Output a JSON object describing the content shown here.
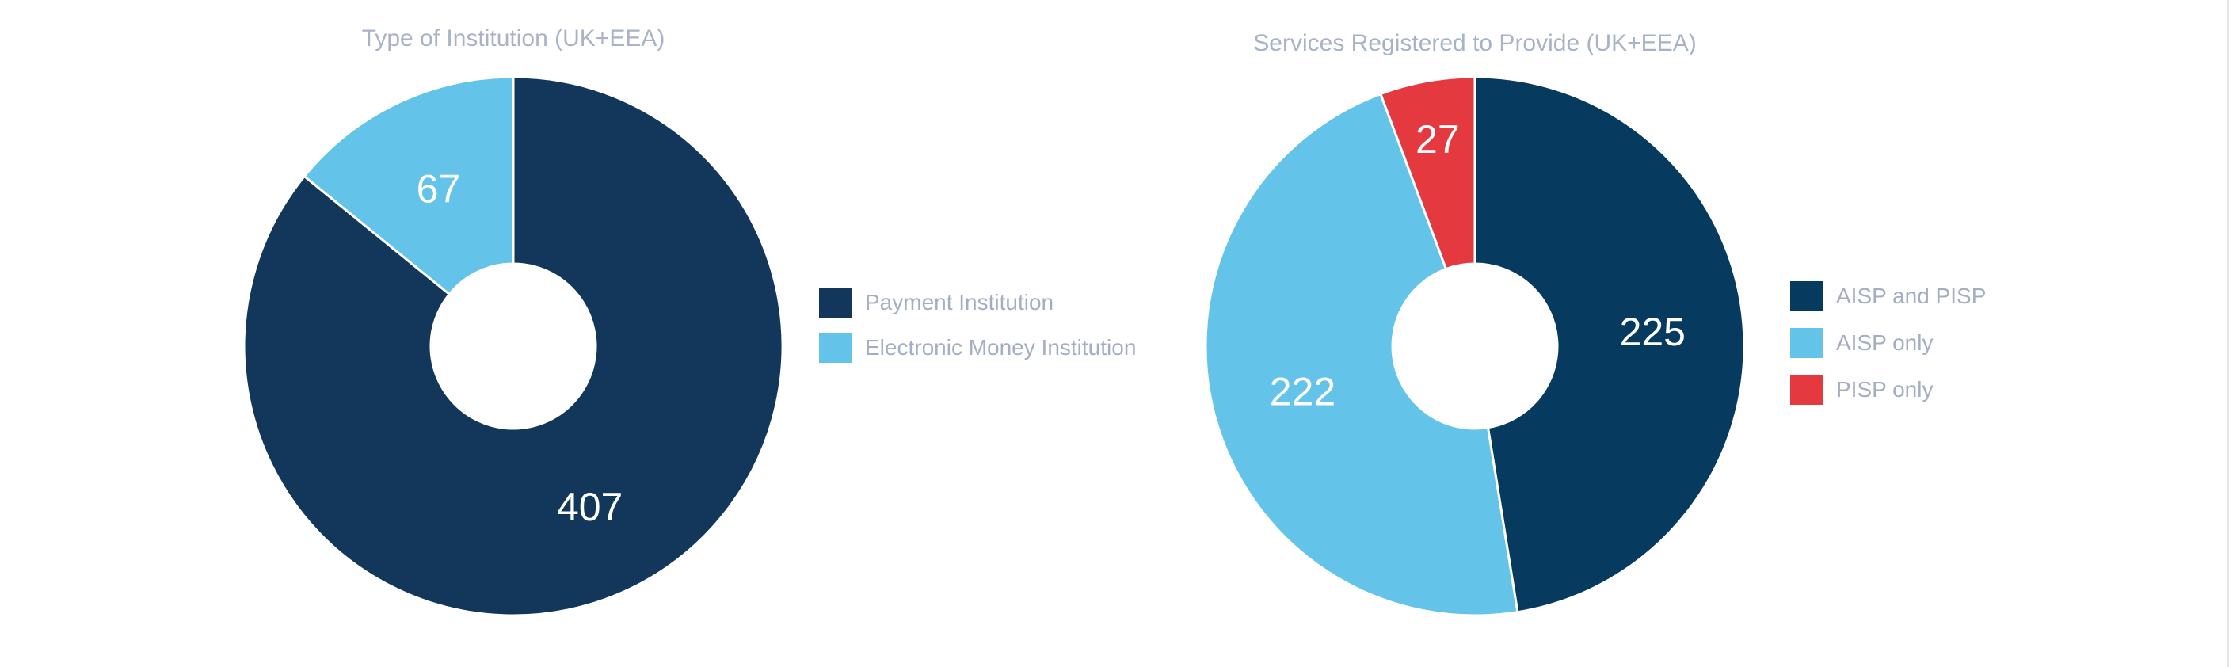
{
  "chart_data": [
    {
      "type": "pie",
      "title": "Type of Institution (UK+EEA)",
      "categories": [
        "Payment Institution",
        "Electronic Money Institution"
      ],
      "values": [
        407,
        67
      ],
      "colors": [
        "#12375a",
        "#63c3e8"
      ],
      "data_labels": [
        "407",
        "67"
      ],
      "donut": true,
      "legend": "right"
    },
    {
      "type": "pie",
      "title": "Services Registered to Provide (UK+EEA)",
      "categories": [
        "AISP and PISP",
        "AISP only",
        "PISP only"
      ],
      "values": [
        225,
        222,
        27
      ],
      "colors": [
        "#063a5e",
        "#63c3e8",
        "#e53940"
      ],
      "data_labels": [
        "225",
        "222",
        "27"
      ],
      "donut": true,
      "legend": "right"
    }
  ]
}
